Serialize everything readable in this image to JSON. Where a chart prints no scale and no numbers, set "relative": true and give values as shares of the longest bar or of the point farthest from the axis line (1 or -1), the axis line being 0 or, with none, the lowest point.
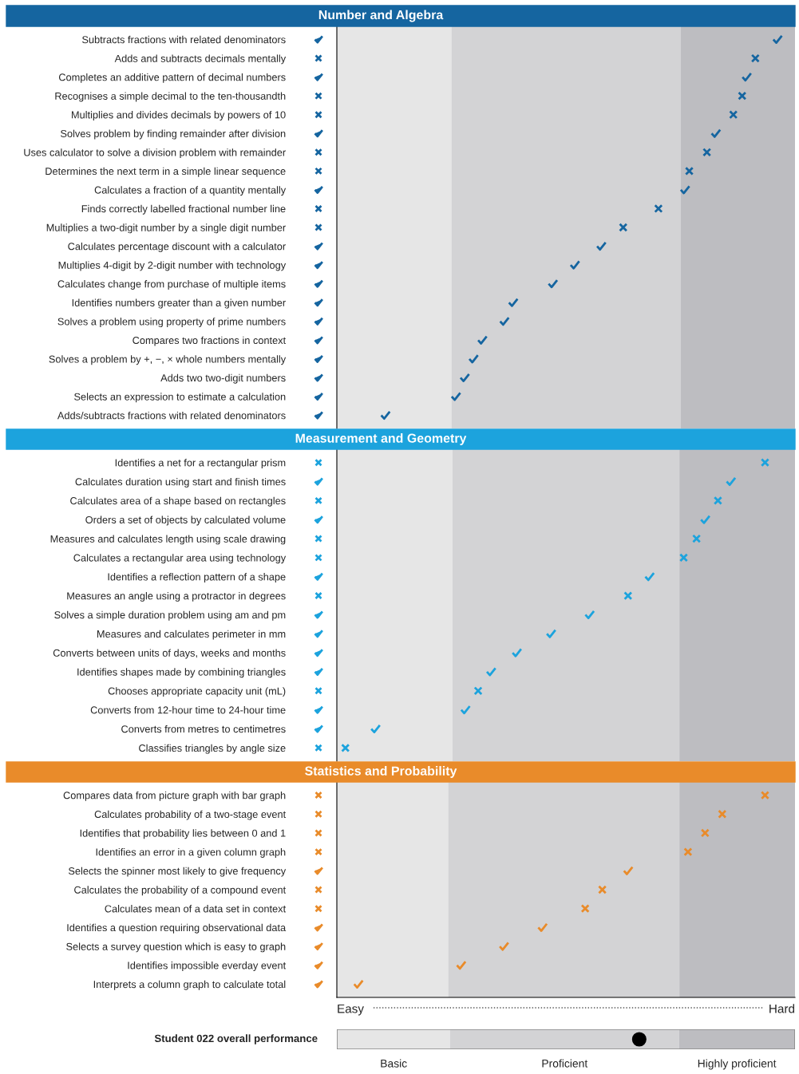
{
  "chart_data": [
    {
      "type": "scatter",
      "title": "Number and Algebra",
      "orientation": "horizontal",
      "relative": true,
      "categories": [
        "Subtracts fractions with related denominators",
        "Adds and subtracts decimals mentally",
        "Completes an additive pattern of decimal numbers",
        "Recognises a simple decimal to the ten-thousandth",
        "Multiplies and divides decimals by powers of 10",
        "Solves problem by finding remainder after division",
        "Uses calculator to solve a division problem with remainder",
        "Determines the next term in a simple linear sequence",
        "Calculates a fraction of a quantity mentally",
        "Finds correctly labelled fractional number line",
        "Multiplies a two-digit number by a single digit number",
        "Calculates percentage discount with a calculator",
        "Multiplies 4-digit by 2-digit number with technology",
        "Calculates change from purchase of multiple items",
        "Identifies numbers greater than a given number",
        "Solves a problem using property of prime numbers",
        "Compares two fractions in context",
        "Solves a problem by +, −, × whole numbers mentally",
        "Adds two two-digit numbers",
        "Selects an expression to estimate a calculation",
        "Adds/subtracts fractions with related denominators"
      ],
      "series": [
        {
          "color": "#1565a0",
          "values": [
            1,
            null,
            0.93,
            null,
            null,
            0.86,
            null,
            null,
            0.79,
            null,
            null,
            0.6,
            0.54,
            0.49,
            0.4,
            0.38,
            0.33,
            0.31,
            0.29,
            0.27,
            0.11
          ]
        },
        {
          "color": "#1565a0",
          "marker": "cross",
          "values": [
            null,
            0.95,
            null,
            0.92,
            0.9,
            null,
            0.84,
            0.8,
            null,
            0.73,
            0.65,
            null,
            null,
            null,
            null,
            null,
            null,
            null,
            null,
            null,
            null
          ]
        }
      ],
      "bands": [
        {
          "axis": "x",
          "from": 0,
          "to": 0.26,
          "color": "#e6e6e6"
        },
        {
          "axis": "x",
          "from": 0.26,
          "to": 0.78,
          "color": "#d3d3d5"
        },
        {
          "axis": "x",
          "from": 0.78,
          "to": 1.04,
          "color": "#bdbdc1"
        }
      ]
    },
    {
      "type": "scatter",
      "title": "Measurement and Geometry",
      "orientation": "horizontal",
      "relative": true,
      "categories": [
        "Identifies a net for a rectangular prism",
        "Calculates duration using start and finish times",
        "Calculates area of a shape based on rectangles",
        "Orders a set of objects by calculated volume",
        "Measures and calculates length using scale drawing",
        "Calculates a rectangular area using technology",
        "Identifies a reflection pattern of a shape",
        "Measures an angle using a protractor in degrees",
        "Solves a simple duration problem using am and pm",
        "Measures and calculates perimeter in mm",
        "Converts between units of days, weeks and months",
        "Identifies shapes made by combining triangles",
        "Chooses appropriate capacity unit (mL)",
        "Converts from 12-hour time to 24-hour time",
        "Converts from metres to centimetres",
        "Classifies triangles by angle size"
      ],
      "series": [
        {
          "color": "#1ca3dd",
          "values": [
            null,
            0.92,
            null,
            0.86,
            null,
            null,
            0.73,
            null,
            0.59,
            0.5,
            0.42,
            0.36,
            null,
            0.3,
            0.09,
            null
          ]
        },
        {
          "color": "#1ca3dd",
          "marker": "cross",
          "values": [
            1,
            null,
            0.89,
            null,
            0.84,
            0.81,
            null,
            0.68,
            null,
            null,
            null,
            null,
            0.33,
            null,
            null,
            0.02
          ]
        }
      ],
      "bands": [
        {
          "axis": "x",
          "from": 0,
          "to": 0.27,
          "color": "#e6e6e6"
        },
        {
          "axis": "x",
          "from": 0.27,
          "to": 0.8,
          "color": "#d3d3d5"
        },
        {
          "axis": "x",
          "from": 0.8,
          "to": 1.07,
          "color": "#bdbdc1"
        }
      ]
    },
    {
      "type": "scatter",
      "title": "Statistics and Probability",
      "orientation": "horizontal",
      "relative": true,
      "categories": [
        "Compares data from picture graph with bar graph",
        "Calculates probability of a two-stage event",
        "Identifies that probability lies between 0 and 1",
        "Identifies an error in a given column graph",
        "Selects the spinner most likely to give frequency",
        "Calculates the probability of a compound event",
        "Calculates mean of a data set in context",
        "Identifies a question requiring observational data",
        "Selects a survey question which is easy to graph",
        "Identifies impossible everday event",
        "Interprets a column graph to calculate total"
      ],
      "series": [
        {
          "color": "#e98b2a",
          "values": [
            null,
            null,
            null,
            null,
            0.68,
            null,
            null,
            0.48,
            0.39,
            0.29,
            0.05
          ]
        },
        {
          "color": "#e98b2a",
          "marker": "cross",
          "values": [
            1,
            0.9,
            0.86,
            0.82,
            null,
            0.62,
            0.58,
            null,
            null,
            null,
            null
          ]
        }
      ],
      "bands": [
        {
          "axis": "x",
          "from": 0,
          "to": 0.26,
          "color": "#e6e6e6"
        },
        {
          "axis": "x",
          "from": 0.26,
          "to": 0.8,
          "color": "#d3d3d5"
        },
        {
          "axis": "x",
          "from": 0.8,
          "to": 1.07,
          "color": "#bdbdc1"
        }
      ],
      "annotations": [
        "Easy",
        "Hard"
      ]
    },
    {
      "type": "other",
      "title": "Student 022 overall performance",
      "annotations": [
        "Basic",
        "Proficient",
        "Highly proficient"
      ]
    }
  ]
}
